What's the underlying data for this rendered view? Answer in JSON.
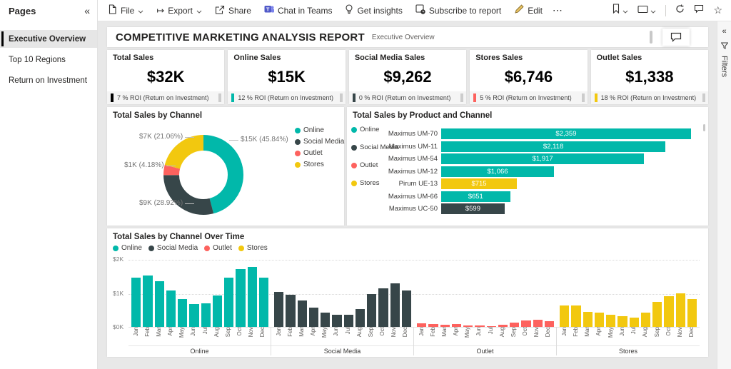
{
  "colors": {
    "online": "#01B8AA",
    "social_media": "#374649",
    "outlet": "#FD625E",
    "stores": "#F2C80F",
    "total": "#000000"
  },
  "sidebar": {
    "title": "Pages",
    "collapse_icon": "«",
    "items": [
      {
        "label": "Executive Overview",
        "selected": true
      },
      {
        "label": "Top 10 Regions",
        "selected": false
      },
      {
        "label": "Return on Investment",
        "selected": false
      }
    ]
  },
  "toolbar": {
    "items": [
      {
        "label": "File",
        "icon": "file-icon",
        "chevron": true
      },
      {
        "label": "Export",
        "icon": "export-icon",
        "chevron": true
      },
      {
        "label": "Share",
        "icon": "share-icon",
        "chevron": false
      },
      {
        "label": "Chat in Teams",
        "icon": "teams-icon",
        "chevron": false
      },
      {
        "label": "Get insights",
        "icon": "lightbulb-icon",
        "chevron": false
      },
      {
        "label": "Subscribe to report",
        "icon": "subscribe-icon",
        "chevron": false
      },
      {
        "label": "Edit",
        "icon": "edit-pencil-icon",
        "chevron": false
      }
    ],
    "more_label": "⋯",
    "right_icons": [
      {
        "icon": "bookmark-icon",
        "chevron": true
      },
      {
        "icon": "view-icon",
        "chevron": true
      },
      {
        "divider": true
      },
      {
        "icon": "refresh-icon",
        "chevron": false
      },
      {
        "icon": "comment-icon",
        "chevron": false
      },
      {
        "icon": "star-icon",
        "chevron": false
      }
    ]
  },
  "report": {
    "title": "COMPETITIVE MARKETING ANALYSIS REPORT",
    "subtitle": "Executive Overview"
  },
  "kpi_cards": [
    {
      "title": "Total Sales",
      "value": "$32K",
      "roi_text": "7 % ROI (Return on Investment)",
      "accent": "#000000"
    },
    {
      "title": "Online Sales",
      "value": "$15K",
      "roi_text": "12 % ROI (Return on Investment)",
      "accent": "#01B8AA"
    },
    {
      "title": "Social Media Sales",
      "value": "$9,262",
      "roi_text": "0 % ROI (Return on Investment)",
      "accent": "#374649"
    },
    {
      "title": "Stores Sales",
      "value": "$6,746",
      "roi_text": "5 % ROI (Return on Investment)",
      "accent": "#FD625E"
    },
    {
      "title": "Outlet Sales",
      "value": "$1,338",
      "roi_text": "18 % ROI (Return on Investment)",
      "accent": "#F2C80F"
    }
  ],
  "legend": [
    {
      "label": "Online",
      "color": "#01B8AA"
    },
    {
      "label": "Social Media",
      "color": "#374649"
    },
    {
      "label": "Outlet",
      "color": "#FD625E"
    },
    {
      "label": "Stores",
      "color": "#F2C80F"
    }
  ],
  "chart_data": [
    {
      "type": "pie",
      "donut": true,
      "title": "Total Sales by Channel",
      "categories": [
        "Online",
        "Social Media",
        "Outlet",
        "Stores"
      ],
      "values": [
        45.84,
        28.92,
        4.18,
        21.06
      ],
      "value_labels": [
        "$15K (45.84%)",
        "$9K (28.92%)",
        "$1K (4.18%)",
        "$7K (21.06%)"
      ],
      "colors": [
        "#01B8AA",
        "#374649",
        "#FD625E",
        "#F2C80F"
      ],
      "legend_position": "right"
    },
    {
      "type": "bar",
      "orientation": "horizontal",
      "title": "Total Sales by Product and Channel",
      "categories": [
        "Maximus UM-70",
        "Maximus UM-11",
        "Maximus UM-54",
        "Maximus UM-12",
        "Pirum UE-13",
        "Maximus UM-66",
        "Maximus UC-50"
      ],
      "values": [
        2359,
        2118,
        1917,
        1066,
        715,
        651,
        599
      ],
      "value_labels": [
        "$2,359",
        "$2,118",
        "$1,917",
        "$1,066",
        "$715",
        "$651",
        "$599"
      ],
      "bar_series": [
        "Online",
        "Online",
        "Online",
        "Online",
        "Stores",
        "Online",
        "Social Media"
      ],
      "xlim": [
        0,
        2400
      ],
      "legend_position": "left"
    },
    {
      "type": "bar",
      "title": "Total Sales by Channel Over Time",
      "categories": [
        "Jan",
        "Feb",
        "Mar",
        "Apr",
        "May",
        "Jun",
        "Jul",
        "Aug",
        "Sep",
        "Oct",
        "Nov",
        "Dec"
      ],
      "series": [
        {
          "name": "Online",
          "values": [
            1.45,
            1.51,
            1.35,
            1.08,
            0.82,
            0.68,
            0.69,
            0.93,
            1.46,
            1.7,
            1.77,
            1.46
          ]
        },
        {
          "name": "Social Media",
          "values": [
            1.03,
            0.95,
            0.78,
            0.57,
            0.43,
            0.35,
            0.36,
            0.52,
            0.97,
            1.13,
            1.28,
            1.07
          ]
        },
        {
          "name": "Outlet",
          "values": [
            0.1,
            0.08,
            0.06,
            0.08,
            0.05,
            0.04,
            0.03,
            0.07,
            0.13,
            0.19,
            0.2,
            0.17
          ]
        },
        {
          "name": "Stores",
          "values": [
            0.64,
            0.64,
            0.44,
            0.42,
            0.35,
            0.31,
            0.27,
            0.42,
            0.73,
            0.9,
            0.98,
            0.82
          ]
        }
      ],
      "units": "K (USD thousands)",
      "ylim": [
        0,
        2
      ],
      "yticks": [
        "$0K",
        "$1K",
        "$2K"
      ],
      "grid": "dotted",
      "legend_position": "top"
    }
  ],
  "filters": {
    "label": "Filters",
    "collapse_icon": "«"
  }
}
